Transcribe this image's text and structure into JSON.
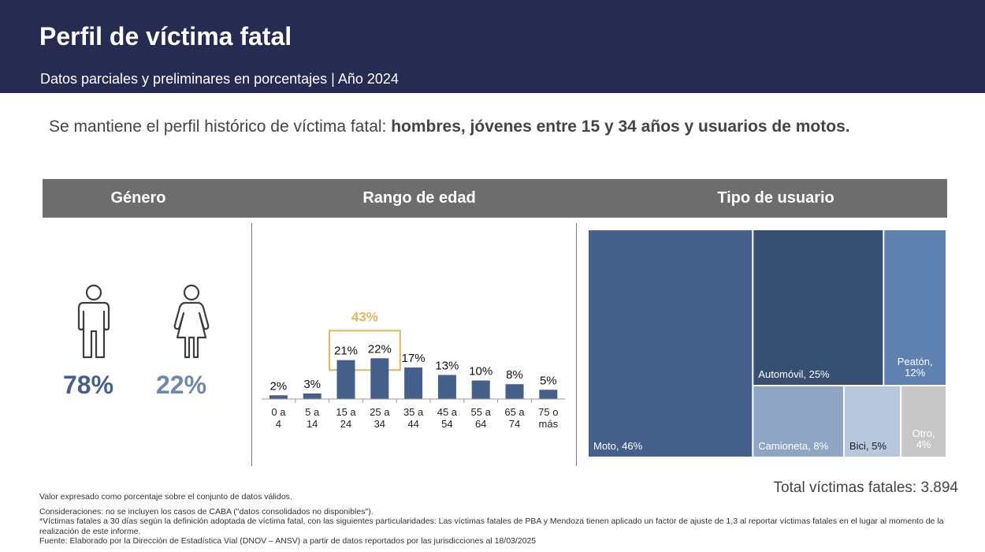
{
  "header": {
    "title": "Perfil de víctima fatal",
    "subtitle": "Datos parciales y preliminares en porcentajes | Año 2024"
  },
  "headline": {
    "plain": "Se mantiene el perfil histórico de víctima fatal: ",
    "bold": "hombres, jóvenes entre 15 y 34 años y usuarios de motos."
  },
  "sections": {
    "genero": "Género",
    "rango_edad": "Rango de edad",
    "tipo_usuario": "Tipo de usuario"
  },
  "gender": {
    "male_pct": "78%",
    "female_pct": "22%",
    "male_color": "#45608a",
    "female_color": "#6e88b0"
  },
  "chart_data": [
    {
      "type": "bar",
      "title": "Rango de edad",
      "categories": [
        "0 a 4",
        "5 a 14",
        "15 a 24",
        "25 a 34",
        "35 a 44",
        "45 a 54",
        "55 a 64",
        "65 a 74",
        "75 o más"
      ],
      "values": [
        2,
        3,
        21,
        22,
        17,
        13,
        10,
        8,
        5
      ],
      "value_labels": [
        "2%",
        "3%",
        "21%",
        "22%",
        "17%",
        "13%",
        "10%",
        "8%",
        "5%"
      ],
      "highlight": {
        "categories": [
          "15 a 24",
          "25 a 34"
        ],
        "label": "43%",
        "color": "#e2b75e"
      },
      "bar_color": "#45608a",
      "ylim": [
        0,
        25
      ],
      "grid": false
    },
    {
      "type": "treemap",
      "title": "Tipo de usuario",
      "items": [
        {
          "name": "Moto",
          "label": "Moto, 46%",
          "value": 46,
          "color": "#45608a"
        },
        {
          "name": "Automóvil",
          "label": "Automóvil, 25%",
          "value": 25,
          "color": "#374f71"
        },
        {
          "name": "Peatón",
          "label": "Peatón,",
          "label2": "12%",
          "value": 12,
          "color": "#5f81b0"
        },
        {
          "name": "Camioneta",
          "label": "Camioneta, 8%",
          "value": 8,
          "color": "#8fa5c4"
        },
        {
          "name": "Bici",
          "label": "Bici, 5%",
          "value": 5,
          "color": "#b8c7dd"
        },
        {
          "name": "Otro",
          "label": "Otro,",
          "label2": "4%",
          "value": 4,
          "color": "#c7c7c7"
        }
      ]
    }
  ],
  "total": "Total víctimas fatales: 3.894",
  "notes": {
    "valor": "Valor expresado como porcentaje sobre el conjunto de datos válidos.",
    "consideraciones": "Consideraciones: no se incluyen los casos de CABA (\"datos consolidados no disponibles\").",
    "victimas": "*Víctimas fatales a 30 días según la definición adoptada de víctima fatal, con las siguientes particularidades: Las víctimas fatales de PBA y Mendoza tienen aplicado un factor de ajuste de 1,3 al reportar víctimas fatales en el lugar al momento de la realización de este informe.",
    "fuente": "Fuente: Elaborado por la Dirección de Estadística Vial (DNOV – ANSV) a partir de datos reportados por las jurisdicciones al 18/03/2025"
  }
}
